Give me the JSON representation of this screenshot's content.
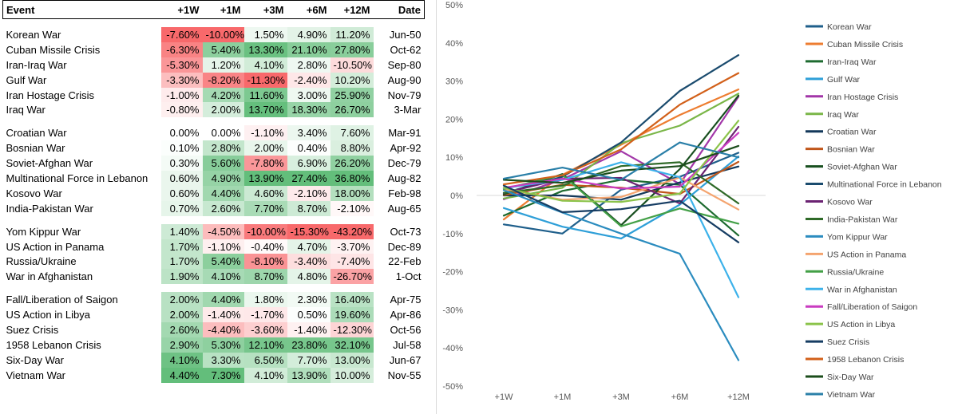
{
  "table": {
    "headers": [
      "Event",
      "+1W",
      "+1M",
      "+3M",
      "+6M",
      "+12M",
      "Date"
    ],
    "groups": [
      [
        {
          "event": "Korean War",
          "values": [
            "-7.60%",
            "-10.00%",
            "1.50%",
            "4.90%",
            "11.20%"
          ],
          "date": "Jun-50"
        },
        {
          "event": "Cuban Missile Crisis",
          "values": [
            "-6.30%",
            "5.40%",
            "13.30%",
            "21.10%",
            "27.80%"
          ],
          "date": "Oct-62"
        },
        {
          "event": "Iran-Iraq War",
          "values": [
            "-5.30%",
            "1.20%",
            "4.10%",
            "2.80%",
            "-10.50%"
          ],
          "date": "Sep-80"
        },
        {
          "event": "Gulf War",
          "values": [
            "-3.30%",
            "-8.20%",
            "-11.30%",
            "-2.40%",
            "10.20%"
          ],
          "date": "Aug-90"
        },
        {
          "event": "Iran Hostage Crisis",
          "values": [
            "-1.00%",
            "4.20%",
            "11.60%",
            "3.00%",
            "25.90%"
          ],
          "date": "Nov-79"
        },
        {
          "event": "Iraq War",
          "values": [
            "-0.80%",
            "2.00%",
            "13.70%",
            "18.30%",
            "26.70%"
          ],
          "date": "3-Mar"
        }
      ],
      [
        {
          "event": "Croatian War",
          "values": [
            "0.00%",
            "0.00%",
            "-1.10%",
            "3.40%",
            "7.60%"
          ],
          "date": "Mar-91"
        },
        {
          "event": "Bosnian War",
          "values": [
            "0.10%",
            "2.80%",
            "2.00%",
            "0.40%",
            "8.80%"
          ],
          "date": "Apr-92"
        },
        {
          "event": "Soviet-Afghan War",
          "values": [
            "0.30%",
            "5.60%",
            "-7.80%",
            "6.90%",
            "26.20%"
          ],
          "date": "Dec-79"
        },
        {
          "event": "Multinational Force in Lebanon",
          "values": [
            "0.60%",
            "4.90%",
            "13.90%",
            "27.40%",
            "36.80%"
          ],
          "date": "Aug-82"
        },
        {
          "event": "Kosovo War",
          "values": [
            "0.60%",
            "4.40%",
            "4.60%",
            "-2.10%",
            "18.00%"
          ],
          "date": "Feb-98"
        },
        {
          "event": "India-Pakistan War",
          "values": [
            "0.70%",
            "2.60%",
            "7.70%",
            "8.70%",
            "-2.10%"
          ],
          "date": "Aug-65"
        }
      ],
      [
        {
          "event": "Yom Kippur War",
          "values": [
            "1.40%",
            "-4.50%",
            "-10.00%",
            "-15.30%",
            "-43.20%"
          ],
          "date": "Oct-73"
        },
        {
          "event": "US Action in Panama",
          "values": [
            "1.70%",
            "-1.10%",
            "-0.40%",
            "4.70%",
            "-3.70%"
          ],
          "date": "Dec-89"
        },
        {
          "event": "Russia/Ukraine",
          "values": [
            "1.70%",
            "5.40%",
            "-8.10%",
            "-3.40%",
            "-7.40%"
          ],
          "date": "22-Feb"
        },
        {
          "event": "War in Afghanistan",
          "values": [
            "1.90%",
            "4.10%",
            "8.70%",
            "4.80%",
            "-26.70%"
          ],
          "date": "1-Oct"
        }
      ],
      [
        {
          "event": "Fall/Liberation of Saigon",
          "values": [
            "2.00%",
            "4.40%",
            "1.80%",
            "2.30%",
            "16.40%"
          ],
          "date": "Apr-75"
        },
        {
          "event": "US Action in Libya",
          "values": [
            "2.00%",
            "-1.40%",
            "-1.70%",
            "0.50%",
            "19.60%"
          ],
          "date": "Apr-86"
        },
        {
          "event": "Suez Crisis",
          "values": [
            "2.60%",
            "-4.40%",
            "-3.60%",
            "-1.40%",
            "-12.30%"
          ],
          "date": "Oct-56"
        },
        {
          "event": "1958 Lebanon Crisis",
          "values": [
            "2.90%",
            "5.30%",
            "12.10%",
            "23.80%",
            "32.10%"
          ],
          "date": "Jul-58"
        },
        {
          "event": "Six-Day War",
          "values": [
            "4.10%",
            "3.30%",
            "6.50%",
            "7.70%",
            "13.00%"
          ],
          "date": "Jun-67"
        },
        {
          "event": "Vietnam War",
          "values": [
            "4.40%",
            "7.30%",
            "4.10%",
            "13.90%",
            "10.00%"
          ],
          "date": "Nov-55"
        }
      ]
    ],
    "colors": {
      "pos_max": "#63be7b",
      "neg_max": "#f8696b",
      "neutral": "#ffffff"
    }
  },
  "chart_data": {
    "type": "line",
    "categories": [
      "+1W",
      "+1M",
      "+3M",
      "+6M",
      "+12M"
    ],
    "ylim": [
      -50,
      50
    ],
    "y_ticks": [
      "-50%",
      "-40%",
      "-30%",
      "-20%",
      "-10%",
      "0%",
      "10%",
      "20%",
      "30%",
      "40%",
      "50%"
    ],
    "grid": false,
    "legend_position": "right",
    "series": [
      {
        "name": "Korean War",
        "color": "#1f5f8b",
        "values": [
          -7.6,
          -10.0,
          1.5,
          4.9,
          11.2
        ]
      },
      {
        "name": "Cuban Missile Crisis",
        "color": "#ed7d31",
        "values": [
          -6.3,
          5.4,
          13.3,
          21.1,
          27.8
        ]
      },
      {
        "name": "Iran-Iraq War",
        "color": "#1e6b30",
        "values": [
          -5.3,
          1.2,
          4.1,
          2.8,
          -10.5
        ]
      },
      {
        "name": "Gulf War",
        "color": "#2e9fd8",
        "values": [
          -3.3,
          -8.2,
          -11.3,
          -2.4,
          10.2
        ]
      },
      {
        "name": "Iran Hostage Crisis",
        "color": "#a236a8",
        "values": [
          -1.0,
          4.2,
          11.6,
          3.0,
          25.9
        ]
      },
      {
        "name": "Iraq War",
        "color": "#7ab648",
        "values": [
          -0.8,
          2.0,
          13.7,
          18.3,
          26.7
        ]
      },
      {
        "name": "Croatian War",
        "color": "#13385a",
        "values": [
          0.0,
          0.0,
          -1.1,
          3.4,
          7.6
        ]
      },
      {
        "name": "Bosnian War",
        "color": "#c0561a",
        "values": [
          0.1,
          2.8,
          2.0,
          0.4,
          8.8
        ]
      },
      {
        "name": "Soviet-Afghan War",
        "color": "#184f1f",
        "values": [
          0.3,
          5.6,
          -7.8,
          6.9,
          26.2
        ]
      },
      {
        "name": "Multinational Force in Lebanon",
        "color": "#1a4b6e",
        "values": [
          0.6,
          4.9,
          13.9,
          27.4,
          36.8
        ]
      },
      {
        "name": "Kosovo War",
        "color": "#6b2372",
        "values": [
          0.6,
          4.4,
          4.6,
          -2.1,
          18.0
        ]
      },
      {
        "name": "India-Pakistan War",
        "color": "#2f6a28",
        "values": [
          0.7,
          2.6,
          7.7,
          8.7,
          -2.1
        ]
      },
      {
        "name": "Yom Kippur War",
        "color": "#2b8cbf",
        "values": [
          1.4,
          -4.5,
          -10.0,
          -15.3,
          -43.2
        ]
      },
      {
        "name": "US Action in Panama",
        "color": "#f4a46f",
        "values": [
          1.7,
          -1.1,
          -0.4,
          4.7,
          -3.7
        ]
      },
      {
        "name": "Russia/Ukraine",
        "color": "#43a047",
        "values": [
          1.7,
          5.4,
          -8.1,
          -3.4,
          -7.4
        ]
      },
      {
        "name": "War in Afghanistan",
        "color": "#3db2ea",
        "values": [
          1.9,
          4.1,
          8.7,
          4.8,
          -26.7
        ]
      },
      {
        "name": "Fall/Liberation of Saigon",
        "color": "#c93cc0",
        "values": [
          2.0,
          4.4,
          1.8,
          2.3,
          16.4
        ]
      },
      {
        "name": "US Action in Libya",
        "color": "#8bc34a",
        "values": [
          2.0,
          -1.4,
          -1.7,
          0.5,
          19.6
        ]
      },
      {
        "name": "Suez Crisis",
        "color": "#163d63",
        "values": [
          2.6,
          -4.4,
          -3.6,
          -1.4,
          -12.3
        ]
      },
      {
        "name": "1958 Lebanon Crisis",
        "color": "#d2601a",
        "values": [
          2.9,
          5.3,
          12.1,
          23.8,
          32.1
        ]
      },
      {
        "name": "Six-Day War",
        "color": "#1b4d1b",
        "values": [
          4.1,
          3.3,
          6.5,
          7.7,
          13.0
        ]
      },
      {
        "name": "Vietnam War",
        "color": "#2a7fa8",
        "values": [
          4.4,
          7.3,
          4.1,
          13.9,
          10.0
        ]
      }
    ]
  }
}
